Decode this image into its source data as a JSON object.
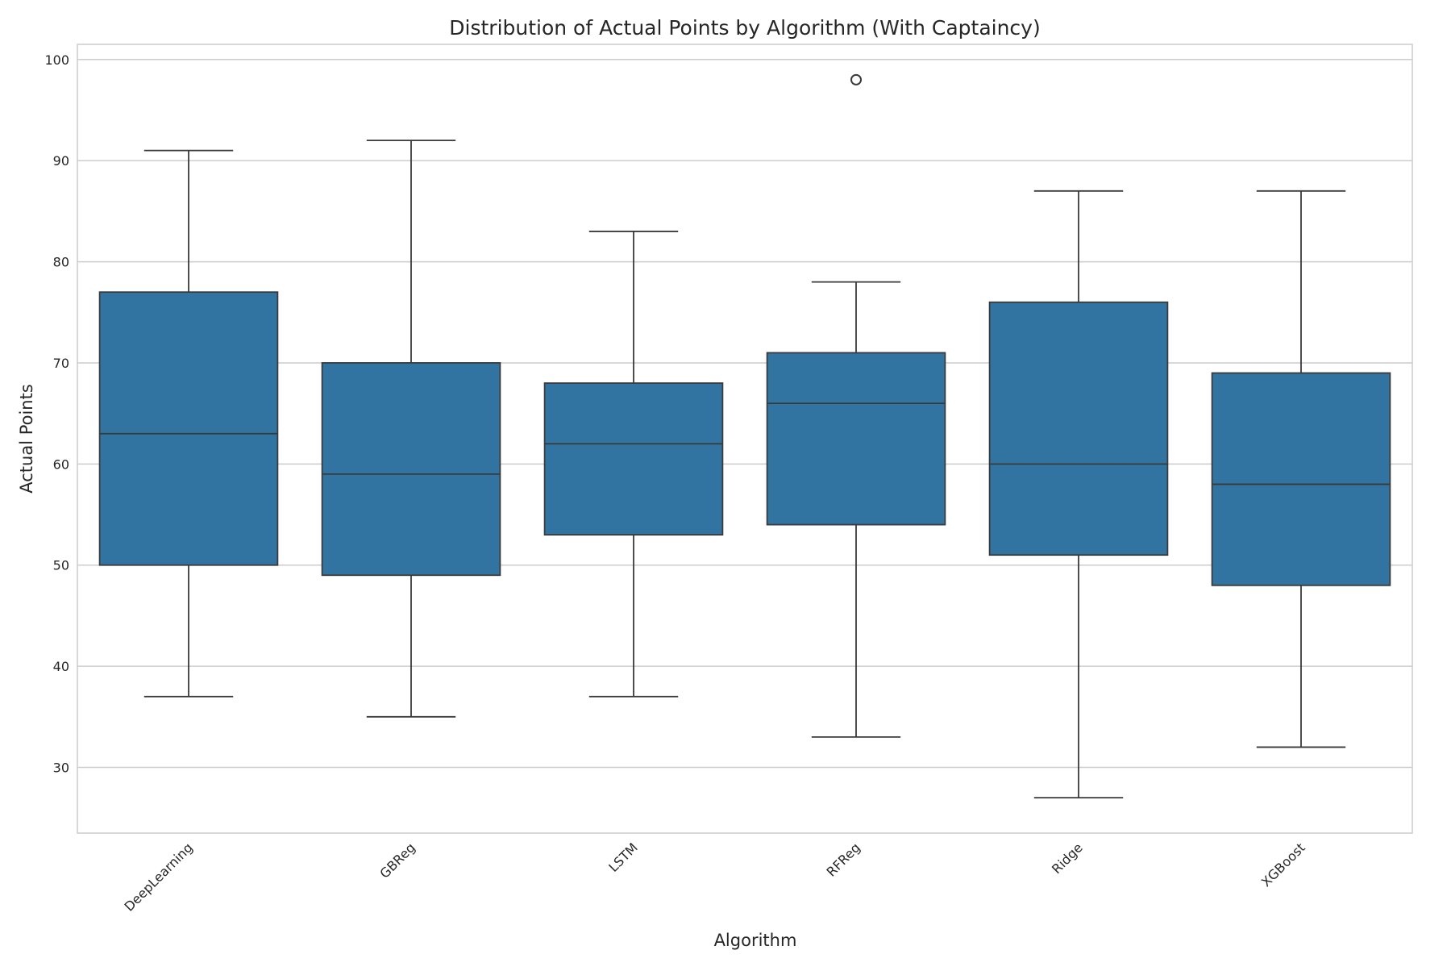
{
  "chart_data": {
    "type": "box",
    "title": "Distribution of Actual Points by Algorithm (With Captaincy)",
    "xlabel": "Algorithm",
    "ylabel": "Actual Points",
    "ylim": [
      23.5,
      101.5
    ],
    "yticks": [
      30,
      40,
      50,
      60,
      70,
      80,
      90,
      100
    ],
    "grid": true,
    "legend": "none",
    "box_color": "#3274a1",
    "line_color": "#3a3a3a",
    "grid_color": "#cccccc",
    "categories": [
      "DeepLearning",
      "GBReg",
      "LSTM",
      "RFReg",
      "Ridge",
      "XGBoost"
    ],
    "boxes": [
      {
        "name": "DeepLearning",
        "whisker_low": 37,
        "q1": 50,
        "median": 63,
        "q3": 77,
        "whisker_high": 91,
        "outliers": []
      },
      {
        "name": "GBReg",
        "whisker_low": 35,
        "q1": 49,
        "median": 59,
        "q3": 70,
        "whisker_high": 92,
        "outliers": []
      },
      {
        "name": "LSTM",
        "whisker_low": 37,
        "q1": 53,
        "median": 62,
        "q3": 68,
        "whisker_high": 83,
        "outliers": []
      },
      {
        "name": "RFReg",
        "whisker_low": 33,
        "q1": 54,
        "median": 66,
        "q3": 71,
        "whisker_high": 78,
        "outliers": [
          98
        ]
      },
      {
        "name": "Ridge",
        "whisker_low": 27,
        "q1": 51,
        "median": 60,
        "q3": 76,
        "whisker_high": 87,
        "outliers": []
      },
      {
        "name": "XGBoost",
        "whisker_low": 32,
        "q1": 48,
        "median": 58,
        "q3": 69,
        "whisker_high": 87,
        "outliers": []
      }
    ]
  }
}
